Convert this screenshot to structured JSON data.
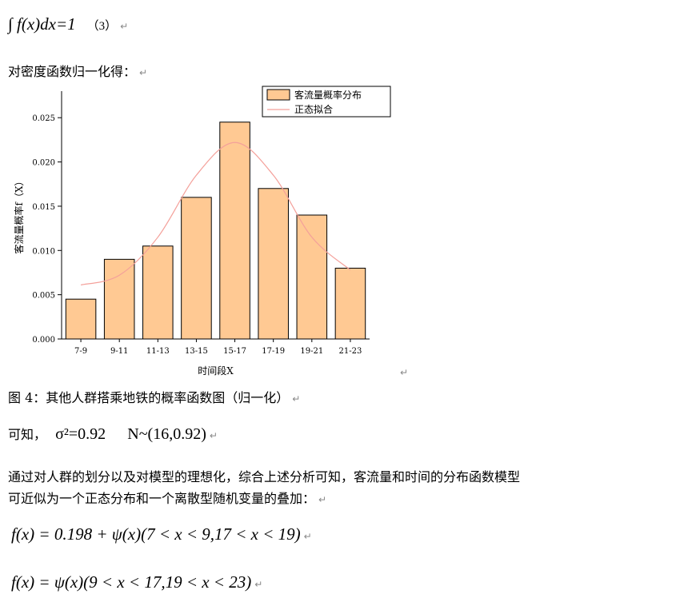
{
  "equation3": {
    "text": "∫ f(x)dx=1",
    "number": "（3）"
  },
  "para_normalize": "对密度函数归一化得：",
  "chart_data": {
    "type": "bar",
    "xlabel": "时间段X",
    "ylabel": "客流量概率f（X）",
    "categories": [
      "7-9",
      "9-11",
      "11-13",
      "13-15",
      "15-17",
      "17-19",
      "19-21",
      "21-23"
    ],
    "series": [
      {
        "name": "客流量概率分布",
        "values": [
          0.0045,
          0.009,
          0.0105,
          0.016,
          0.0245,
          0.017,
          0.014,
          0.008
        ],
        "color": "#ffc993"
      },
      {
        "name": "正态拟合",
        "type": "line",
        "values": [
          0.0061,
          0.0072,
          0.0115,
          0.0185,
          0.0222,
          0.0185,
          0.0115,
          0.0078
        ],
        "color": "#f4a09a"
      }
    ],
    "ylim": [
      0,
      0.028
    ],
    "yticks": [
      "0.000",
      "0.005",
      "0.010",
      "0.015",
      "0.020",
      "0.025"
    ],
    "legend": "top-right"
  },
  "figure_caption": "图 4：其他人群搭乘地铁的概率函数图（归一化）",
  "para_knowable": {
    "prefix": "可知，",
    "sigma": "σ²=0.92",
    "dist": "N~(16,0.92)"
  },
  "para_conclusion": {
    "line1": "通过对人群的划分以及对模型的理想化，综合上述分析可知，客流量和时间的分布函数模型",
    "line2": "可近似为一个正态分布和一个离散型随机变量的叠加："
  },
  "formula1": "f(x) = 0.198 + ψ(x)(7 < x < 9,17 < x < 19)",
  "formula2": "f(x) = ψ(x)(9 < x < 17,19 < x < 23)",
  "return_mark": "↵"
}
